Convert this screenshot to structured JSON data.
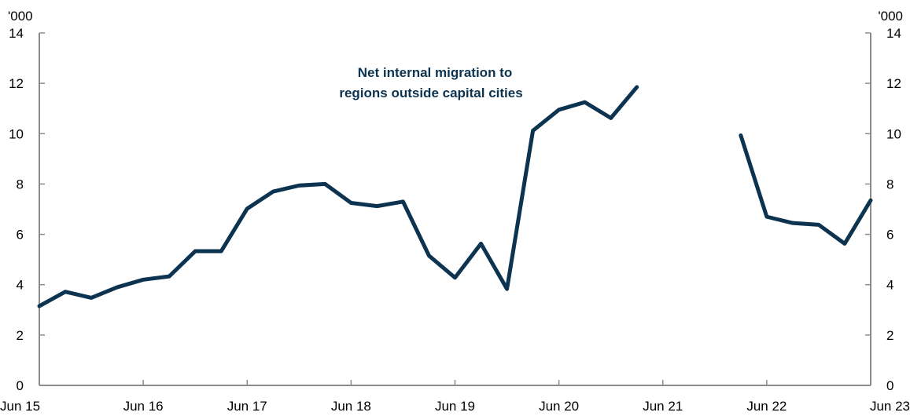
{
  "chart_data": {
    "type": "line",
    "title": "",
    "xlabel": "",
    "ylabel": "",
    "y_unit_left": "'000",
    "y_unit_right": "'000",
    "ylim": [
      0,
      14
    ],
    "y_ticks": [
      0,
      2,
      4,
      6,
      8,
      10,
      12,
      14
    ],
    "x_ticks": [
      "Jun 15",
      "Jun 16",
      "Jun 17",
      "Jun 18",
      "Jun 19",
      "Jun 20",
      "Jun 21",
      "Jun 22",
      "Jun 23"
    ],
    "grid": false,
    "legend": "none",
    "line_color": "#0c3350",
    "annotation": [
      "Net internal migration to",
      "regions outside capital cities"
    ],
    "series": [
      {
        "values": [
          3.15,
          3.72,
          3.48,
          3.9,
          4.2,
          4.33,
          5.33,
          5.33,
          7.02,
          7.7,
          7.94,
          8.0,
          7.25,
          7.12,
          7.3,
          5.15,
          4.28,
          5.63,
          3.83,
          10.12,
          10.95,
          11.25,
          10.62,
          11.85,
          null,
          null,
          null,
          9.93,
          6.7,
          6.45,
          6.38,
          5.63,
          7.35
        ]
      }
    ]
  }
}
